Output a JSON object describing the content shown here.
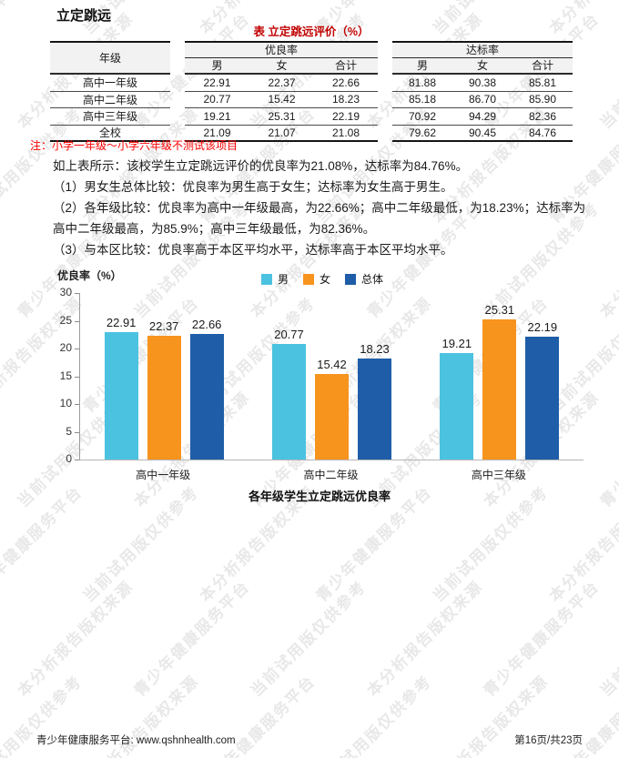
{
  "page": {
    "title": "立定跳远"
  },
  "watermark": {
    "color": "#e8e8e8",
    "phrases": [
      "青少年健康服务平台",
      "当前试用版仅供参考",
      "本分析报告版权来源"
    ]
  },
  "table": {
    "title": "表 立定跳远评价（%）",
    "note": "注：小学一年级～小学六年级不测试该项目",
    "col_grade": "年级",
    "groups": [
      {
        "label": "优良率",
        "cols": [
          "男",
          "女",
          "合计"
        ]
      },
      {
        "label": "达标率",
        "cols": [
          "男",
          "女",
          "合计"
        ]
      }
    ],
    "rows": [
      {
        "grade": "高中一年级",
        "excellent": [
          "22.91",
          "22.37",
          "22.66"
        ],
        "pass": [
          "81.88",
          "90.38",
          "85.81"
        ]
      },
      {
        "grade": "高中二年级",
        "excellent": [
          "20.77",
          "15.42",
          "18.23"
        ],
        "pass": [
          "85.18",
          "86.70",
          "85.90"
        ]
      },
      {
        "grade": "高中三年级",
        "excellent": [
          "19.21",
          "25.31",
          "22.19"
        ],
        "pass": [
          "70.92",
          "94.29",
          "82.36"
        ]
      },
      {
        "grade": "全校",
        "excellent": [
          "21.09",
          "21.07",
          "21.08"
        ],
        "pass": [
          "79.62",
          "90.45",
          "84.76"
        ]
      }
    ]
  },
  "analysis": {
    "summary": "如上表所示：该校学生立定跳远评价的优良率为21.08%，达标率为84.76%。",
    "point1": "（1）男女生总体比较：优良率为男生高于女生；达标率为女生高于男生。",
    "point2": "（2）各年级比较：优良率为高中一年级最高，为22.66%；高中二年级最低，为18.23%；达标率为高中二年级最高，为85.9%；高中三年级最低，为82.36%。",
    "point3": "（3）与本区比较：优良率高于本区平均水平，达标率高于本区平均水平。"
  },
  "chart_data": {
    "type": "bar",
    "title": "各年级学生立定跳远优良率",
    "ylabel": "优良率（%）",
    "xlabel": "",
    "ylim": [
      0,
      30
    ],
    "ytick_step": 5,
    "grid": false,
    "legend_position": "top",
    "categories": [
      "高中一年级",
      "高中二年级",
      "高中三年级"
    ],
    "series": [
      {
        "name": "男",
        "color": "#4BC2E0",
        "values": [
          22.91,
          20.77,
          19.21
        ]
      },
      {
        "name": "女",
        "color": "#F7941E",
        "values": [
          22.37,
          15.42,
          25.31
        ]
      },
      {
        "name": "总体",
        "color": "#1F5DA8",
        "values": [
          22.66,
          18.23,
          22.19
        ]
      }
    ]
  },
  "footer": {
    "left": "青少年健康服务平台: www.qshnhealth.com",
    "right": "第16页/共23页"
  }
}
